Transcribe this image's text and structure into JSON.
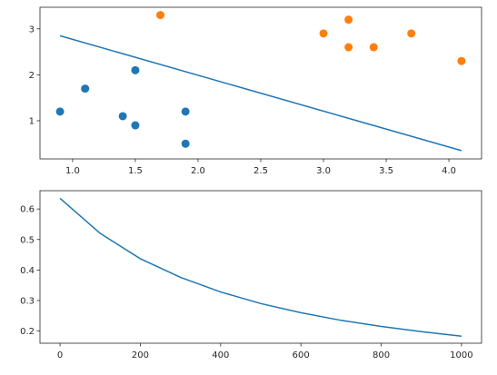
{
  "colors": {
    "series_blue": "#1f77b4",
    "series_orange": "#ff7f0e",
    "axis": "#262626",
    "background": "#ffffff"
  },
  "chart_data": [
    {
      "type": "scatter",
      "title": "",
      "xlabel": "",
      "ylabel": "",
      "grid": false,
      "xlim": [
        0.74,
        4.26
      ],
      "ylim": [
        0.17,
        3.47
      ],
      "xticks": [
        {
          "value": 1.0,
          "label": "1.0"
        },
        {
          "value": 1.5,
          "label": "1.5"
        },
        {
          "value": 2.0,
          "label": "2.0"
        },
        {
          "value": 2.5,
          "label": "2.5"
        },
        {
          "value": 3.0,
          "label": "3.0"
        },
        {
          "value": 3.5,
          "label": "3.5"
        },
        {
          "value": 4.0,
          "label": "4.0"
        }
      ],
      "yticks": [
        {
          "value": 1,
          "label": "1"
        },
        {
          "value": 2,
          "label": "2"
        },
        {
          "value": 3,
          "label": "3"
        }
      ],
      "series": [
        {
          "kind": "scatter",
          "color": "#1f77b4",
          "points": [
            [
              0.9,
              1.2
            ],
            [
              1.1,
              1.7
            ],
            [
              1.4,
              1.1
            ],
            [
              1.5,
              0.9
            ],
            [
              1.5,
              2.1
            ],
            [
              1.9,
              1.2
            ],
            [
              1.9,
              0.5
            ]
          ]
        },
        {
          "kind": "scatter",
          "color": "#ff7f0e",
          "points": [
            [
              1.7,
              3.3
            ],
            [
              3.0,
              2.9
            ],
            [
              3.2,
              3.2
            ],
            [
              3.2,
              2.6
            ],
            [
              3.4,
              2.6
            ],
            [
              3.7,
              2.9
            ],
            [
              4.1,
              2.3
            ]
          ]
        },
        {
          "kind": "line",
          "color": "#1f77b4",
          "points": [
            [
              0.9,
              2.85
            ],
            [
              4.1,
              0.35
            ]
          ]
        }
      ]
    },
    {
      "type": "line",
      "title": "",
      "xlabel": "",
      "ylabel": "",
      "grid": false,
      "xlim": [
        -50,
        1050
      ],
      "ylim": [
        0.16,
        0.66
      ],
      "xticks": [
        {
          "value": 0,
          "label": "0"
        },
        {
          "value": 200,
          "label": "200"
        },
        {
          "value": 400,
          "label": "400"
        },
        {
          "value": 600,
          "label": "600"
        },
        {
          "value": 800,
          "label": "800"
        },
        {
          "value": 1000,
          "label": "1000"
        }
      ],
      "yticks": [
        {
          "value": 0.2,
          "label": "0.2"
        },
        {
          "value": 0.3,
          "label": "0.3"
        },
        {
          "value": 0.4,
          "label": "0.4"
        },
        {
          "value": 0.5,
          "label": "0.5"
        },
        {
          "value": 0.6,
          "label": "0.6"
        }
      ],
      "series": [
        {
          "kind": "line",
          "color": "#1f77b4",
          "points": [
            [
              0,
              0.635
            ],
            [
              100,
              0.52
            ],
            [
              200,
              0.437
            ],
            [
              300,
              0.376
            ],
            [
              400,
              0.328
            ],
            [
              500,
              0.29
            ],
            [
              600,
              0.26
            ],
            [
              700,
              0.235
            ],
            [
              800,
              0.215
            ],
            [
              900,
              0.198
            ],
            [
              1000,
              0.183
            ]
          ]
        }
      ]
    }
  ]
}
